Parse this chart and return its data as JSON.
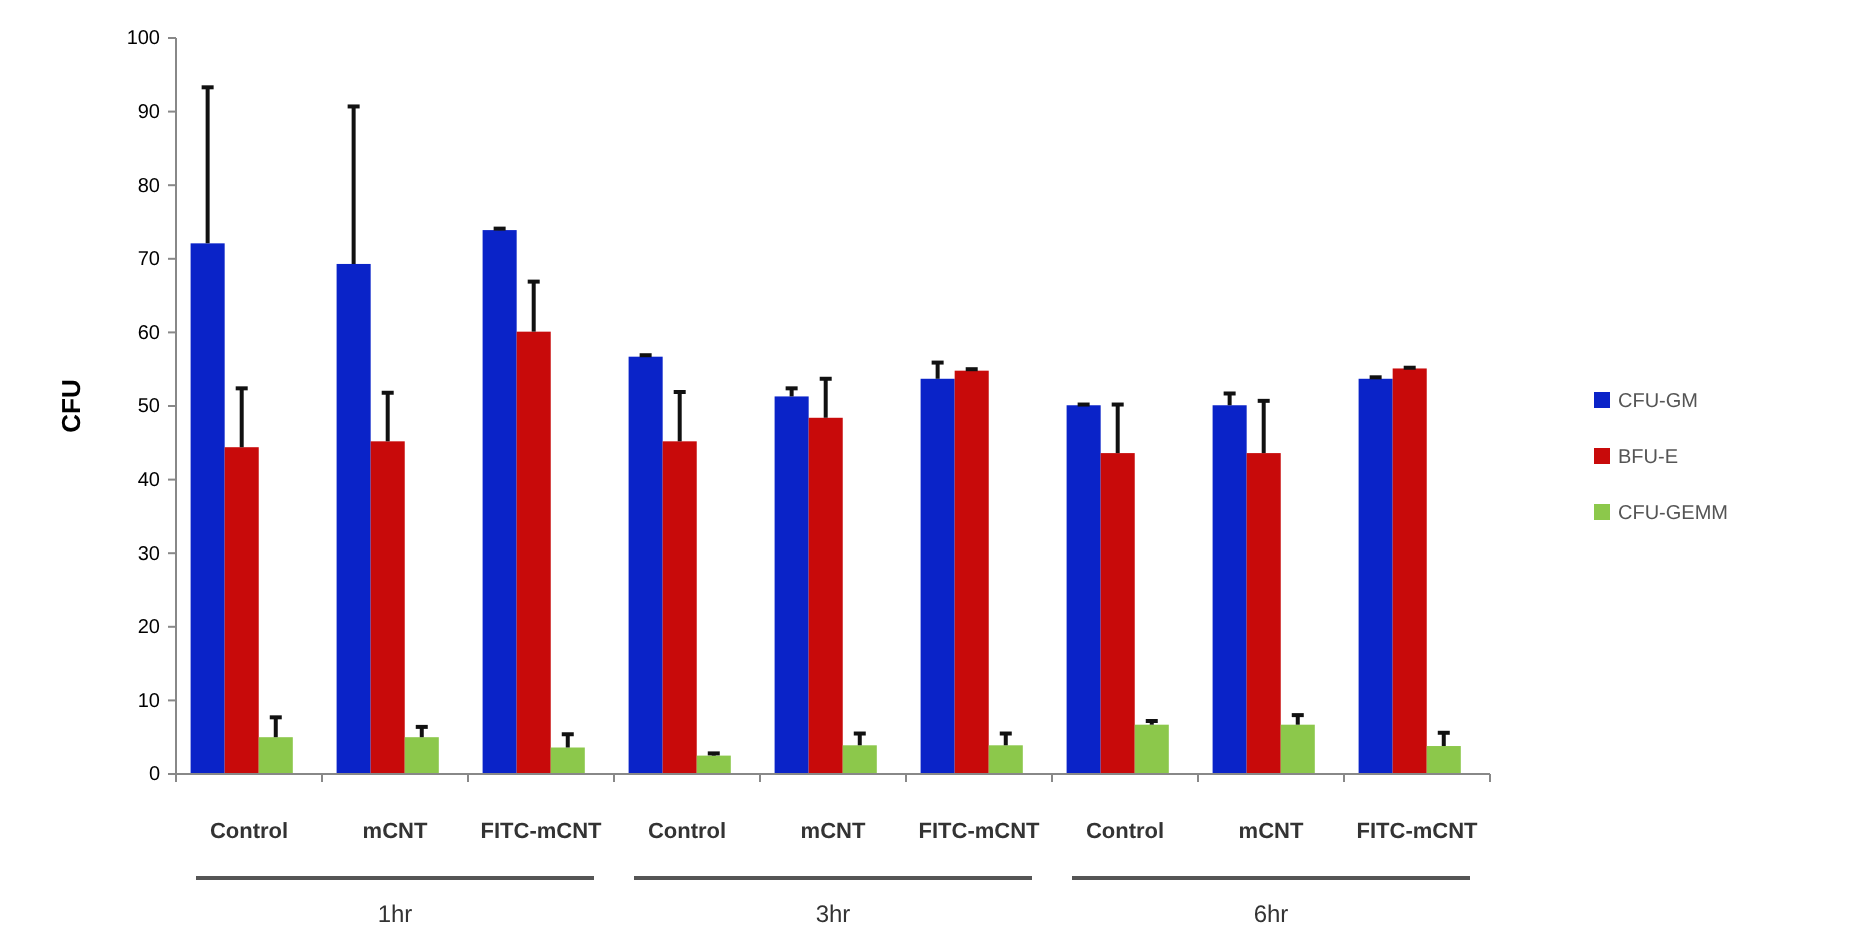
{
  "chart_data": {
    "type": "bar",
    "ylabel": "CFU",
    "categories": [
      "Control",
      "mCNT",
      "FITC-mCNT",
      "Control",
      "mCNT",
      "FITC-mCNT",
      "Control",
      "mCNT",
      "FITC-mCNT"
    ],
    "series": [
      {
        "name": "CFU-GM",
        "color": "#0a23c8",
        "values": [
          72.1,
          69.3,
          73.9,
          56.7,
          51.3,
          53.7,
          50.1,
          50.1,
          53.7
        ],
        "errors": [
          [
            72.1,
            93.3
          ],
          [
            69.3,
            90.7
          ],
          [
            73.9,
            74.1
          ],
          [
            56.7,
            56.9
          ],
          [
            51.3,
            52.4
          ],
          [
            53.7,
            55.9
          ],
          [
            50.1,
            50.2
          ],
          [
            50.1,
            51.7
          ],
          [
            53.7,
            53.9
          ]
        ]
      },
      {
        "name": "BFU-E",
        "color": "#c80a0a",
        "values": [
          44.4,
          45.2,
          60.1,
          45.2,
          48.4,
          54.8,
          43.6,
          43.6,
          55.1
        ],
        "errors": [
          [
            44.4,
            52.4
          ],
          [
            45.2,
            51.8
          ],
          [
            60.1,
            66.9
          ],
          [
            45.2,
            51.9
          ],
          [
            48.4,
            53.7
          ],
          [
            54.8,
            55
          ],
          [
            43.6,
            50.2
          ],
          [
            43.6,
            50.7
          ],
          [
            55.1,
            55.2
          ]
        ]
      },
      {
        "name": "CFU-GEMM",
        "color": "#8cc84b",
        "values": [
          5,
          5,
          3.6,
          2.5,
          3.9,
          3.9,
          6.7,
          6.7,
          3.8
        ],
        "errors": [
          [
            5,
            7.7
          ],
          [
            5,
            6.4
          ],
          [
            3.6,
            5.4
          ],
          [
            2.5,
            2.8
          ],
          [
            3.9,
            5.5
          ],
          [
            3.9,
            5.5
          ],
          [
            6.7,
            7.2
          ],
          [
            6.7,
            8
          ],
          [
            3.8,
            5.6
          ]
        ]
      }
    ],
    "ylim": [
      0,
      100
    ],
    "yticks": [
      0,
      10,
      20,
      30,
      40,
      50,
      60,
      70,
      80,
      90,
      100
    ],
    "legend": "right",
    "annotations": [
      "1hr",
      "3hr",
      "6hr"
    ]
  }
}
